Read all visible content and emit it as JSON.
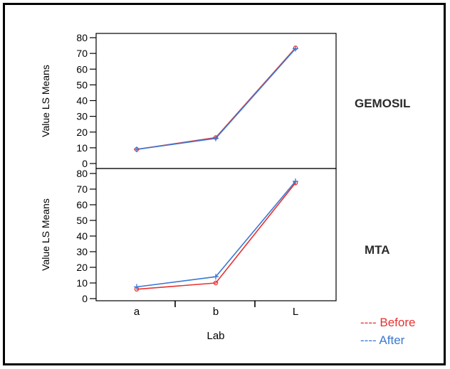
{
  "colors": {
    "before": "#e8312f",
    "after": "#3a78d4",
    "axis": "#000000"
  },
  "legend": [
    {
      "key": "before",
      "label": "---- Before"
    },
    {
      "key": "after",
      "label": "---- After"
    }
  ],
  "chart_data": [
    {
      "type": "line",
      "panel_label": "GEMOSIL",
      "ylabel": "Value LS Means",
      "xlabel": "",
      "categories": [
        "a",
        "b",
        "L"
      ],
      "ylim": [
        0,
        80
      ],
      "yticks": [
        0,
        10,
        20,
        30,
        40,
        50,
        60,
        70,
        80
      ],
      "series": [
        {
          "name": "Before",
          "values": [
            9,
            16.5,
            73.5
          ]
        },
        {
          "name": "After",
          "values": [
            9,
            16,
            73
          ]
        }
      ]
    },
    {
      "type": "line",
      "panel_label": "MTA",
      "ylabel": "Value LS Means",
      "xlabel": "Lab",
      "categories": [
        "a",
        "b",
        "L"
      ],
      "ylim": [
        0,
        80
      ],
      "yticks": [
        0,
        10,
        20,
        30,
        40,
        50,
        60,
        70,
        80
      ],
      "series": [
        {
          "name": "Before",
          "values": [
            6,
            10,
            74
          ]
        },
        {
          "name": "After",
          "values": [
            7.5,
            14,
            75
          ]
        }
      ]
    }
  ]
}
